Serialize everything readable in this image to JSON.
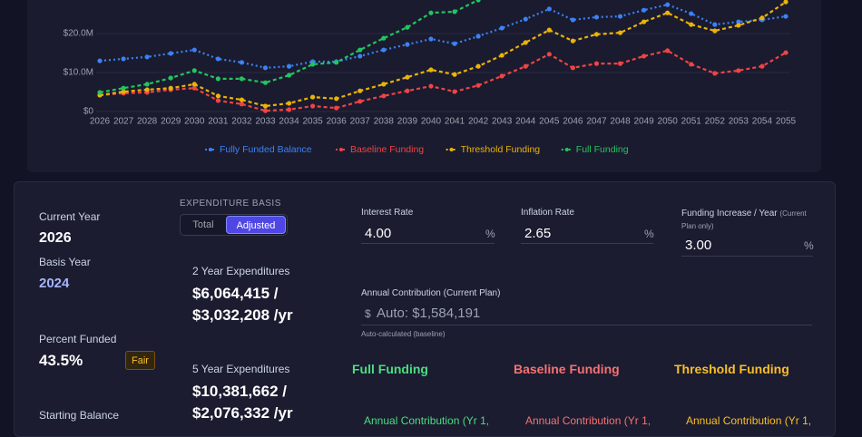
{
  "chart_data": {
    "type": "line",
    "categories": [
      "2026",
      "2027",
      "2028",
      "2029",
      "2030",
      "2031",
      "2032",
      "2033",
      "2034",
      "2035",
      "2036",
      "2037",
      "2038",
      "2039",
      "2040",
      "2041",
      "2042",
      "2043",
      "2044",
      "2045",
      "2046",
      "2047",
      "2048",
      "2049",
      "2050",
      "2051",
      "2052",
      "2053",
      "2054",
      "2055"
    ],
    "ylim": [
      0,
      28.6
    ],
    "yticks": [
      {
        "value": 0,
        "label": "$0"
      },
      {
        "value": 10,
        "label": "$10.0M"
      },
      {
        "value": 20,
        "label": "$20.0M"
      }
    ],
    "grid": true,
    "legend": "bottom",
    "series": [
      {
        "name": "Fully Funded Balance",
        "color": "#3b82f6",
        "values": [
          13.0,
          13.5,
          14.0,
          14.9,
          15.8,
          13.5,
          12.6,
          11.2,
          11.6,
          12.8,
          12.8,
          14.2,
          15.8,
          17.2,
          18.6,
          17.4,
          19.3,
          21.4,
          23.7,
          26.3,
          23.5,
          24.2,
          24.4,
          26.0,
          27.4,
          25.1,
          22.3,
          23.0,
          23.5,
          24.4
        ]
      },
      {
        "name": "Baseline Funding",
        "color": "#ef4444",
        "values": [
          4.2,
          4.7,
          4.9,
          5.6,
          6.0,
          2.8,
          1.9,
          0.2,
          0.5,
          1.4,
          0.9,
          2.6,
          4.0,
          5.3,
          6.5,
          5.1,
          6.7,
          9.1,
          11.6,
          14.7,
          11.2,
          12.3,
          12.3,
          14.2,
          15.6,
          12.1,
          9.8,
          10.5,
          11.6,
          15.1
        ]
      },
      {
        "name": "Threshold Funding",
        "color": "#eab308",
        "values": [
          4.2,
          5.1,
          5.6,
          6.0,
          7.0,
          4.0,
          3.0,
          1.4,
          2.1,
          3.7,
          3.3,
          5.3,
          7.0,
          8.8,
          10.7,
          9.5,
          11.6,
          14.4,
          17.7,
          20.9,
          18.1,
          19.8,
          20.2,
          23.0,
          25.3,
          22.3,
          20.7,
          22.1,
          24.0,
          28.1
        ]
      },
      {
        "name": "Full Funding",
        "color": "#22c55e",
        "values": [
          4.9,
          6.0,
          7.0,
          8.6,
          10.5,
          8.4,
          8.4,
          7.4,
          9.3,
          12.1,
          12.6,
          15.8,
          18.8,
          21.6,
          25.3,
          25.6,
          28.6,
          null,
          null,
          null,
          null,
          null,
          null,
          null,
          null,
          null,
          null,
          null,
          null,
          null
        ]
      }
    ]
  },
  "summary": {
    "current_year_label": "Current Year",
    "current_year": "2026",
    "basis_year_label": "Basis Year",
    "basis_year": "2024",
    "percent_funded_label": "Percent Funded",
    "percent_funded": "43.5%",
    "rating": "Fair",
    "starting_balance_label": "Starting Balance"
  },
  "expenditure": {
    "basis_label": "EXPENDITURE BASIS",
    "options": [
      "Total",
      "Adjusted"
    ],
    "selected": 1,
    "two_year": {
      "label": "2 Year Expenditures",
      "lines": [
        "$6,064,415 /",
        "$3,032,208 /yr"
      ]
    },
    "five_year": {
      "label": "5 Year Expenditures",
      "lines": [
        "$10,381,662 /",
        "$2,076,332 /yr"
      ]
    }
  },
  "inputs": [
    {
      "label": "Interest Rate",
      "value": "4.00",
      "unit": "%"
    },
    {
      "label": "Inflation Rate",
      "value": "2.65",
      "unit": "%"
    },
    {
      "label": "Funding Increase / Year",
      "note": "(Current Plan only)",
      "value": "3.00",
      "unit": "%"
    }
  ],
  "contribution": {
    "label": "Annual Contribution (Current Plan)",
    "prefix": "$",
    "value": "Auto: $1,584,191",
    "note": "Auto-calculated (baseline)"
  },
  "plans": [
    {
      "title": "Full Funding",
      "color": "#4ade80",
      "line": "Annual Contribution (Yr 1,"
    },
    {
      "title": "Baseline Funding",
      "color": "#f87171",
      "line": "Annual Contribution (Yr 1,"
    },
    {
      "title": "Threshold Funding",
      "color": "#fbbf24",
      "line": "Annual Contribution (Yr 1,"
    }
  ]
}
